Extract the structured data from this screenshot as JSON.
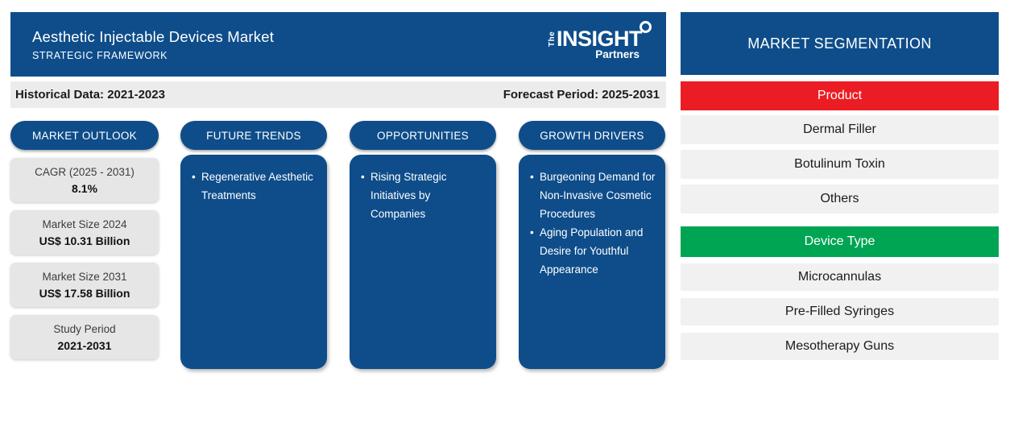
{
  "header": {
    "title": "Aesthetic Injectable Devices Market",
    "subtitle": "STRATEGIC FRAMEWORK",
    "logo": {
      "the": "The",
      "insight": "INSIGHT",
      "partners": "Partners"
    }
  },
  "period_bar": {
    "historical": "Historical Data: 2021-2023",
    "forecast": "Forecast Period: 2025-2031"
  },
  "columns": {
    "market_outlook": {
      "label": "MARKET OUTLOOK",
      "stats": [
        {
          "label": "CAGR (2025 - 2031)",
          "value": "8.1%"
        },
        {
          "label": "Market Size 2024",
          "value": "US$ 10.31 Billion"
        },
        {
          "label": "Market Size 2031",
          "value": "US$ 17.58 Billion"
        },
        {
          "label": "Study Period",
          "value": "2021-2031"
        }
      ]
    },
    "future_trends": {
      "label": "FUTURE TRENDS",
      "items": [
        "Regenerative Aesthetic Treatments"
      ]
    },
    "opportunities": {
      "label": "OPPORTUNITIES",
      "items": [
        "Rising Strategic Initiatives by Companies"
      ]
    },
    "growth_drivers": {
      "label": "GROWTH DRIVERS",
      "items": [
        "Burgeoning Demand for Non-Invasive Cosmetic Procedures",
        "Aging Population and Desire for Youthful Appearance"
      ]
    }
  },
  "segmentation": {
    "title": "MARKET SEGMENTATION",
    "groups": [
      {
        "label": "Product",
        "color": "#ec1c24",
        "items": [
          "Dermal Filler",
          "Botulinum Toxin",
          "Others"
        ]
      },
      {
        "label": "Device Type",
        "color": "#00a553",
        "items": [
          "Microcannulas",
          "Pre-Filled Syringes",
          "Mesotherapy Guns"
        ]
      }
    ]
  },
  "colors": {
    "primary_blue": "#0e4d8a",
    "product_red": "#ec1c24",
    "device_green": "#00a553",
    "bar_gray": "#ececec"
  }
}
